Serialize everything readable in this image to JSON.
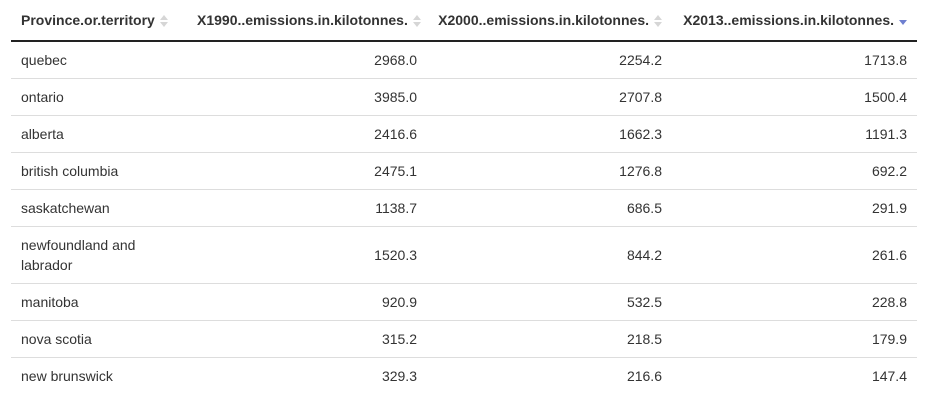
{
  "table": {
    "columns": [
      {
        "label": "Province.or.territory",
        "sort": "none"
      },
      {
        "label": "X1990..emissions.in.kilotonnes.",
        "sort": "none"
      },
      {
        "label": "X2000..emissions.in.kilotonnes.",
        "sort": "none"
      },
      {
        "label": "X2013..emissions.in.kilotonnes.",
        "sort": "descending"
      }
    ],
    "rows": [
      {
        "province": "quebec",
        "y1990": "2968.0",
        "y2000": "2254.2",
        "y2013": "1713.8"
      },
      {
        "province": "ontario",
        "y1990": "3985.0",
        "y2000": "2707.8",
        "y2013": "1500.4"
      },
      {
        "province": "alberta",
        "y1990": "2416.6",
        "y2000": "1662.3",
        "y2013": "1191.3"
      },
      {
        "province": "british columbia",
        "y1990": "2475.1",
        "y2000": "1276.8",
        "y2013": "692.2"
      },
      {
        "province": "saskatchewan",
        "y1990": "1138.7",
        "y2000": "686.5",
        "y2013": "291.9"
      },
      {
        "province": "newfoundland and labrador",
        "y1990": "1520.3",
        "y2000": "844.2",
        "y2013": "261.6"
      },
      {
        "province": "manitoba",
        "y1990": "920.9",
        "y2000": "532.5",
        "y2013": "228.8"
      },
      {
        "province": "nova scotia",
        "y1990": "315.2",
        "y2000": "218.5",
        "y2013": "179.9"
      },
      {
        "province": "new brunswick",
        "y1990": "329.3",
        "y2000": "216.6",
        "y2013": "147.4"
      }
    ]
  },
  "colors": {
    "sort_active": "#6e7fd0",
    "sort_inactive": "#d6d6d6",
    "header_rule": "#222222",
    "row_rule": "#dddddd"
  }
}
